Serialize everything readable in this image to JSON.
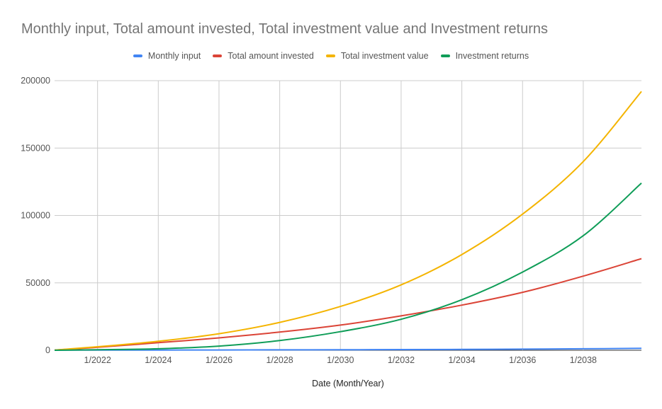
{
  "chart_data": {
    "type": "line",
    "title": "Monthly input, Total amount invested, Total investment value and Investment returns",
    "xlabel": "Date (Month/Year)",
    "ylabel": "",
    "ylim": [
      0,
      200000
    ],
    "yticks": [
      "0",
      "50000",
      "100000",
      "150000",
      "200000"
    ],
    "xticks": [
      "1/2022",
      "1/2024",
      "1/2026",
      "1/2028",
      "1/2030",
      "1/2032",
      "1/2034",
      "1/2036",
      "1/2038"
    ],
    "xrange": [
      "2020-08",
      "2039-12"
    ],
    "grid": true,
    "legend_position": "top",
    "series": [
      {
        "name": "Monthly input",
        "color": "#4285f4",
        "x": [
          "2020-08",
          "2022-01",
          "2024-01",
          "2026-01",
          "2028-01",
          "2030-01",
          "2032-01",
          "2034-01",
          "2036-01",
          "2038-01",
          "2039-12"
        ],
        "values": [
          100,
          130,
          170,
          225,
          290,
          380,
          500,
          650,
          850,
          1100,
          1400
        ]
      },
      {
        "name": "Total amount invested",
        "color": "#db4437",
        "x": [
          "2020-08",
          "2022-01",
          "2024-01",
          "2026-01",
          "2028-01",
          "2030-01",
          "2032-01",
          "2034-01",
          "2036-01",
          "2038-01",
          "2039-12"
        ],
        "values": [
          100,
          2200,
          5600,
          9200,
          13500,
          18700,
          25500,
          33500,
          43000,
          55000,
          68000
        ]
      },
      {
        "name": "Total investment value",
        "color": "#f4b400",
        "x": [
          "2020-08",
          "2022-01",
          "2024-01",
          "2026-01",
          "2028-01",
          "2030-01",
          "2032-01",
          "2034-01",
          "2036-01",
          "2038-01",
          "2039-12"
        ],
        "values": [
          100,
          2600,
          6700,
          12300,
          20700,
          32500,
          48500,
          71000,
          101000,
          140000,
          192000
        ]
      },
      {
        "name": "Investment returns",
        "color": "#0f9d58",
        "x": [
          "2020-08",
          "2022-01",
          "2024-01",
          "2026-01",
          "2028-01",
          "2030-01",
          "2032-01",
          "2034-01",
          "2036-01",
          "2038-01",
          "2039-12"
        ],
        "values": [
          0,
          400,
          1100,
          3100,
          7200,
          13800,
          23000,
          37500,
          58000,
          85000,
          124000
        ]
      }
    ]
  }
}
